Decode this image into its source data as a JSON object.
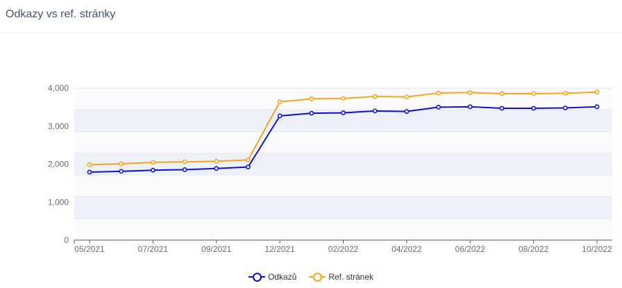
{
  "page": {
    "title": "Odkazy vs ref. stránky"
  },
  "colors": {
    "odkazy": "#0a10d8",
    "ref": "#f4a51c"
  },
  "chart_data": {
    "type": "line",
    "title": "Odkazy vs ref. stránky",
    "xlabel": "",
    "ylabel": "",
    "ylim": [
      0,
      4000
    ],
    "yticks": [
      "0",
      "1,000",
      "2,000",
      "3,000",
      "4,000"
    ],
    "ytick_values": [
      0,
      1000,
      2000,
      3000,
      4000
    ],
    "x": [
      "05/2021",
      "06/2021",
      "07/2021",
      "08/2021",
      "09/2021",
      "10/2021",
      "12/2021",
      "01/2022",
      "02/2022",
      "03/2022",
      "04/2022",
      "05/2022",
      "06/2022",
      "07/2022",
      "08/2022",
      "09/2022",
      "10/2022"
    ],
    "xtick_labels": [
      "05/2021",
      "07/2021",
      "09/2021",
      "12/2021",
      "02/2022",
      "04/2022",
      "06/2022",
      "08/2022",
      "10/2022"
    ],
    "grid": true,
    "legend": "bottom",
    "series": [
      {
        "name": "Odkazů",
        "color": "#0a10d8",
        "values": [
          1790,
          1810,
          1840,
          1855,
          1885,
          1925,
          3270,
          3340,
          3350,
          3400,
          3385,
          3500,
          3510,
          3470,
          3470,
          3480,
          3510
        ]
      },
      {
        "name": "Ref. stránek",
        "color": "#f4a51c",
        "values": [
          1985,
          2010,
          2045,
          2060,
          2075,
          2110,
          3640,
          3720,
          3730,
          3780,
          3770,
          3870,
          3885,
          3855,
          3855,
          3865,
          3895
        ]
      }
    ]
  }
}
